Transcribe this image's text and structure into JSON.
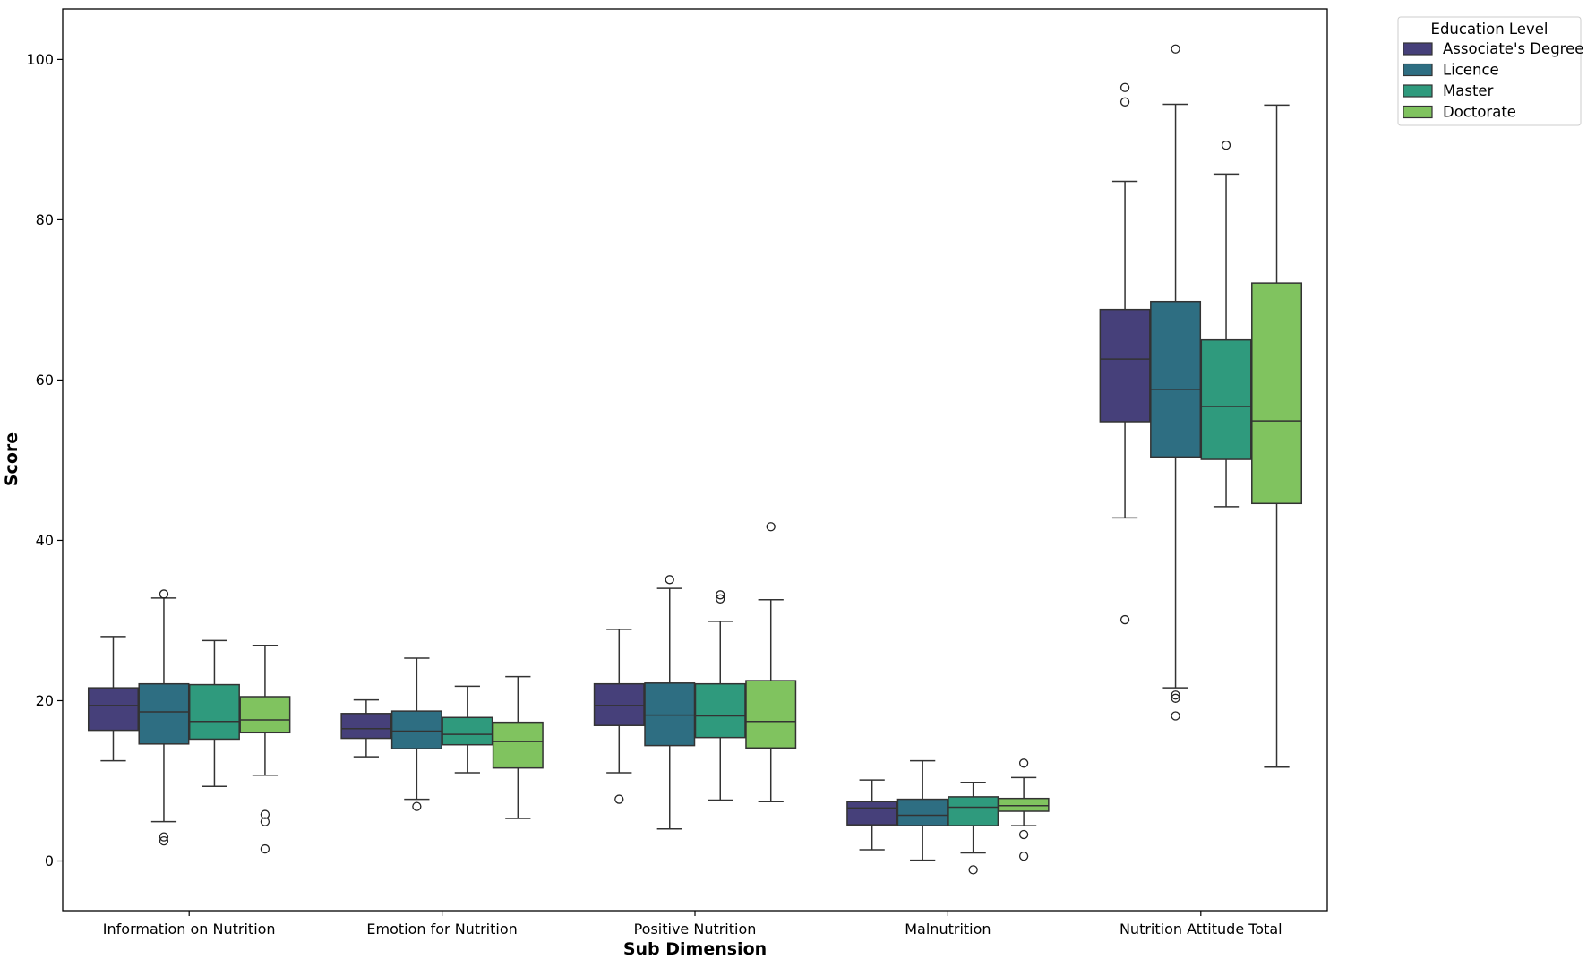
{
  "chart_data": {
    "type": "box",
    "title": "",
    "xlabel": "Sub Dimension",
    "ylabel": "Score",
    "ylim": [
      -6.2,
      106.3
    ],
    "yticks": [
      0,
      20,
      40,
      60,
      80,
      100
    ],
    "grid": false,
    "legend": {
      "title": "Education Level",
      "placement": "outside-top-right"
    },
    "categories": [
      "Information on Nutrition",
      "Emotion for Nutrition",
      "Positive Nutrition",
      "Malnutrition",
      "Nutrition Attitude Total"
    ],
    "series": [
      {
        "name": "Associate's Degree",
        "color": "#46407a",
        "boxes": [
          {
            "whislo": 12.5,
            "q1": 16.3,
            "med": 19.4,
            "q3": 21.6,
            "whishi": 28.0,
            "fliers": []
          },
          {
            "whislo": 13.0,
            "q1": 15.3,
            "med": 16.5,
            "q3": 18.4,
            "whishi": 20.1,
            "fliers": []
          },
          {
            "whislo": 11.0,
            "q1": 16.9,
            "med": 19.4,
            "q3": 22.1,
            "whishi": 28.9,
            "fliers": [
              7.7
            ]
          },
          {
            "whislo": 1.4,
            "q1": 4.5,
            "med": 6.6,
            "q3": 7.4,
            "whishi": 10.1,
            "fliers": []
          },
          {
            "whislo": 42.8,
            "q1": 54.8,
            "med": 62.6,
            "q3": 68.8,
            "whishi": 84.8,
            "fliers": [
              96.5,
              94.7,
              30.1
            ]
          }
        ]
      },
      {
        "name": "Licence",
        "color": "#2e6e82",
        "boxes": [
          {
            "whislo": 4.9,
            "q1": 14.6,
            "med": 18.6,
            "q3": 22.1,
            "whishi": 32.8,
            "fliers": [
              33.3,
              3.0,
              2.5
            ]
          },
          {
            "whislo": 7.7,
            "q1": 14.0,
            "med": 16.2,
            "q3": 18.7,
            "whishi": 25.3,
            "fliers": [
              6.8
            ]
          },
          {
            "whislo": 4.0,
            "q1": 14.4,
            "med": 18.2,
            "q3": 22.2,
            "whishi": 34.0,
            "fliers": [
              35.1
            ]
          },
          {
            "whislo": 0.1,
            "q1": 4.4,
            "med": 5.7,
            "q3": 7.7,
            "whishi": 12.5,
            "fliers": []
          },
          {
            "whislo": 21.6,
            "q1": 50.4,
            "med": 58.8,
            "q3": 69.8,
            "whishi": 94.4,
            "fliers": [
              101.3,
              20.7,
              20.3,
              18.1
            ]
          }
        ]
      },
      {
        "name": "Master",
        "color": "#2f9a7d",
        "boxes": [
          {
            "whislo": 9.3,
            "q1": 15.2,
            "med": 17.4,
            "q3": 22.0,
            "whishi": 27.5,
            "fliers": []
          },
          {
            "whislo": 11.0,
            "q1": 14.5,
            "med": 15.8,
            "q3": 17.9,
            "whishi": 21.8,
            "fliers": []
          },
          {
            "whislo": 7.6,
            "q1": 15.4,
            "med": 18.1,
            "q3": 22.1,
            "whishi": 29.9,
            "fliers": [
              33.2,
              32.7
            ]
          },
          {
            "whislo": 1.0,
            "q1": 4.4,
            "med": 6.7,
            "q3": 8.0,
            "whishi": 9.8,
            "fliers": [
              -1.1
            ]
          },
          {
            "whislo": 44.2,
            "q1": 50.1,
            "med": 56.7,
            "q3": 65.0,
            "whishi": 85.7,
            "fliers": [
              89.3
            ]
          }
        ]
      },
      {
        "name": "Doctorate",
        "color": "#80c35f",
        "boxes": [
          {
            "whislo": 10.7,
            "q1": 16.0,
            "med": 17.6,
            "q3": 20.5,
            "whishi": 26.9,
            "fliers": [
              5.8,
              4.9,
              1.5
            ]
          },
          {
            "whislo": 5.3,
            "q1": 11.6,
            "med": 14.9,
            "q3": 17.3,
            "whishi": 23.0,
            "fliers": []
          },
          {
            "whislo": 7.4,
            "q1": 14.1,
            "med": 17.4,
            "q3": 22.5,
            "whishi": 32.6,
            "fliers": [
              41.7
            ]
          },
          {
            "whislo": 4.4,
            "q1": 6.2,
            "med": 6.9,
            "q3": 7.8,
            "whishi": 10.4,
            "fliers": [
              12.2,
              3.3,
              0.6
            ]
          },
          {
            "whislo": 11.7,
            "q1": 44.6,
            "med": 54.9,
            "q3": 72.1,
            "whishi": 94.3,
            "fliers": []
          }
        ]
      }
    ]
  }
}
